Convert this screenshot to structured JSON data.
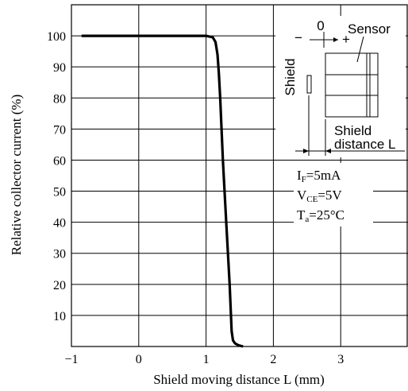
{
  "chart_data": {
    "type": "line",
    "xlabel": "Shield moving distance L (mm)",
    "ylabel": "Relative collector current (%)",
    "xlim": [
      -1,
      4
    ],
    "ylim": [
      0,
      110
    ],
    "x_ticks": [
      -1,
      0,
      1,
      2,
      3
    ],
    "x_tick_labels": [
      "−1",
      "0",
      "1",
      "2",
      "3"
    ],
    "y_ticks": [
      10,
      20,
      30,
      40,
      50,
      60,
      70,
      80,
      90,
      100
    ],
    "grid": true,
    "series": [
      {
        "x": [
          -0.85,
          0.5,
          1.0,
          1.1,
          1.14,
          1.17,
          1.19,
          1.21,
          1.25,
          1.3,
          1.35,
          1.38,
          1.4,
          1.43,
          1.48,
          1.55
        ],
        "y": [
          100,
          100,
          100,
          99.5,
          98,
          94,
          88,
          80,
          60,
          40,
          20,
          5,
          2,
          1,
          0.4,
          0
        ]
      }
    ],
    "conditions": {
      "if": {
        "main": "I",
        "sub": "F",
        "value": "=5mA"
      },
      "vce": {
        "main": "V",
        "sub": "CE",
        "value": "=5V"
      },
      "ta": {
        "main": "T",
        "sub": "a",
        "value": "=25°C"
      }
    },
    "inset": {
      "zero": "0",
      "minus": "−",
      "plus": "+",
      "sensor": "Sensor",
      "shield": "Shield",
      "shield_distance_1": "Shield",
      "shield_distance_2": "distance L"
    }
  }
}
